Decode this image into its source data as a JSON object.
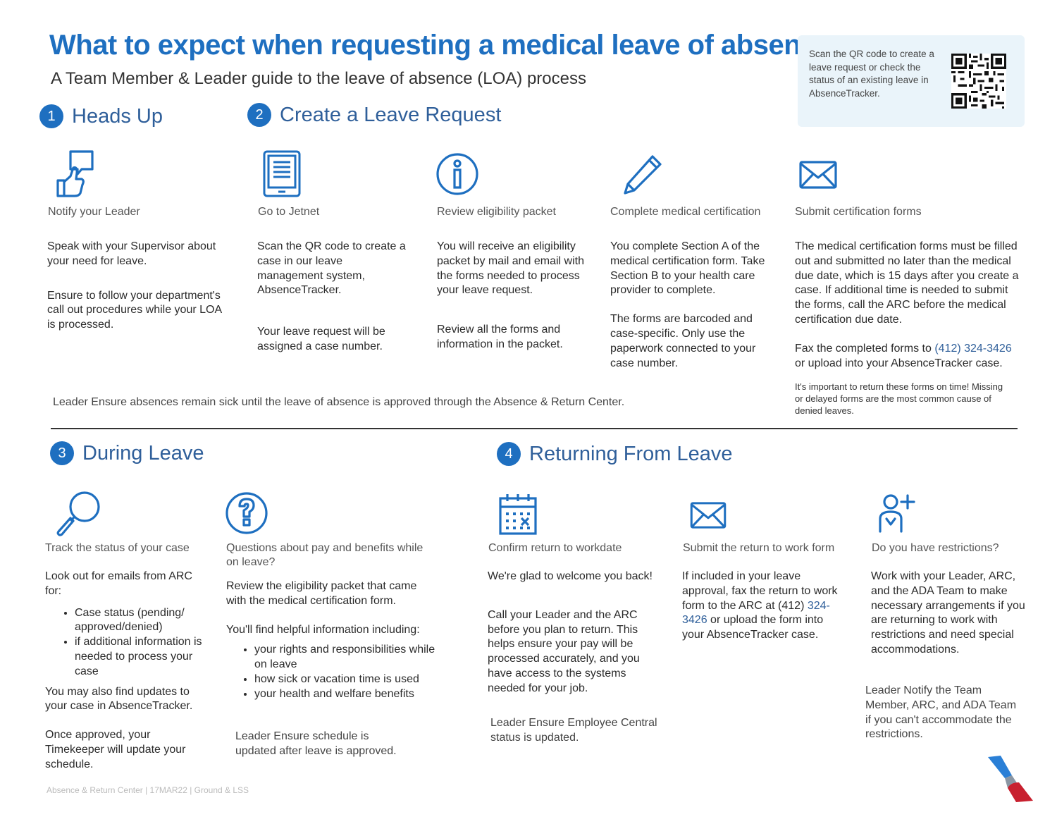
{
  "header": {
    "title": "What to expect when requesting a medical leave of absence",
    "subtitle": "A Team Member & Leader guide to the leave of absence (LOA) process"
  },
  "qr_panel": {
    "text": "Scan the QR code to create a leave request or check the status of an existing leave in AbsenceTracker."
  },
  "sections": {
    "s1": {
      "number": "1",
      "title": "Heads Up"
    },
    "s2": {
      "number": "2",
      "title": "Create a Leave Request"
    },
    "s3": {
      "number": "3",
      "title": "During Leave"
    },
    "s4": {
      "number": "4",
      "title": "Returning From Leave"
    }
  },
  "top_steps": [
    {
      "icon": "chat-thumbs-up-icon",
      "title": "Notify your Leader",
      "p1": "Speak with your Supervisor about your need for leave.",
      "p2": "Ensure to follow your department's call out procedures while your LOA is processed."
    },
    {
      "icon": "tablet-icon",
      "title": "Go to Jetnet",
      "p1": "Scan the QR code to create a case in our leave management system, AbsenceTracker.",
      "p2": "Your leave request will be assigned a case number."
    },
    {
      "icon": "info-icon",
      "title": "Review eligibility packet",
      "p1": "You will receive an eligibility packet by mail and email with the forms needed to process your leave request.",
      "p2": "Review all the forms and information in the packet."
    },
    {
      "icon": "pencil-icon",
      "title": "Complete medical certification",
      "p1": "You complete Section A of the medical certification form. Take Section B to your health care provider to complete.",
      "p2": "The forms are barcoded and case-specific. Only use the paperwork connected to your case number."
    },
    {
      "icon": "envelope-icon",
      "title": "Submit certification forms",
      "p1": "The medical certification forms must be filled out and submitted no later than the medical due date, which is 15 days after you create a case. If additional time is needed to submit the forms, call the ARC before the medical certification due date.",
      "p2_pre": "Fax the completed forms to ",
      "p2_phone": "(412) 324-3426",
      "p2_post": " or upload into your AbsenceTracker case.",
      "note": "It's important to return these forms on time! Missing or delayed forms are the most common cause of denied leaves."
    }
  ],
  "leader_note_top": "Leader Ensure absences remain sick until the leave of absence is approved through the Absence & Return Center.",
  "bottom_steps": {
    "track": {
      "icon": "magnifier-icon",
      "title": "Track the status of your case",
      "p1": "Look out for emails from ARC for:",
      "bullets": [
        "Case status (pending/ approved/denied)",
        "if additional information is needed to process your case"
      ],
      "p2": "You may also find updates to your case in AbsenceTracker.",
      "p3": "Once approved, your Timekeeper will update your schedule."
    },
    "questions": {
      "icon": "question-icon",
      "title": "Questions about pay and benefits while on leave?",
      "p1": "Review the eligibility packet that came with the medical certification form.",
      "p2": "You'll find helpful information including:",
      "bullets": [
        "your rights and responsibilities while on leave",
        "how sick or vacation time is used",
        "your health and welfare benefits"
      ],
      "leader": "Leader Ensure schedule is updated after leave is approved."
    },
    "confirm": {
      "icon": "calendar-icon",
      "title": "Confirm return to workdate",
      "p1": "We're glad to welcome you back!",
      "p2": "Call your Leader and the ARC before you plan to return. This helps ensure your pay will be processed accurately, and you have access to the systems needed for your job.",
      "leader": "Leader Ensure Employee Central status is updated."
    },
    "submit_return": {
      "icon": "envelope-icon",
      "title": "Submit the return to work form",
      "p1_pre": "If included in your leave approval, fax the return to work form to the ARC at (412) ",
      "p1_phone": "324-3426",
      "p1_post": " or upload the form into your AbsenceTracker case."
    },
    "restrictions": {
      "icon": "person-add-icon",
      "title": "Do you have restrictions?",
      "p1": "Work with your Leader, ARC, and the ADA Team to make necessary arrangements if you are returning to work with restrictions and need special accommodations.",
      "leader": "Leader Notify the Team Member, ARC, and ADA Team if you can't accommodate the restrictions."
    }
  },
  "footer": "Absence & Return Center | 17MAR22 | Ground & LSS",
  "colors": {
    "brand_blue": "#1e6fc0",
    "heading_blue": "#2f5f9a",
    "qr_panel_bg": "#eaf4fa",
    "logo_red": "#c8202f"
  }
}
